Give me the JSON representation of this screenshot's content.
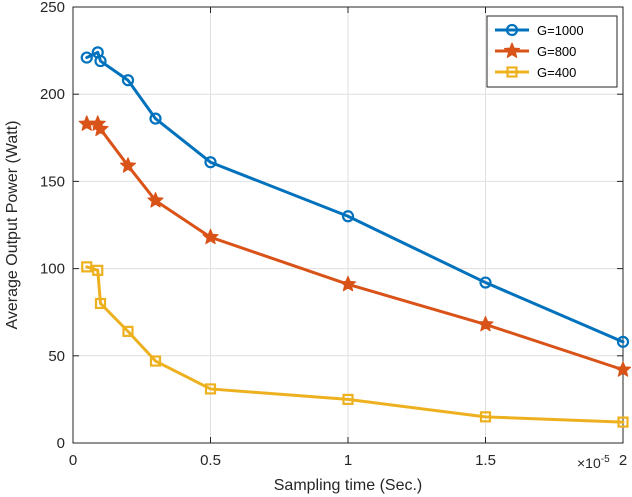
{
  "chart_data": {
    "type": "line",
    "xlabel": "Sampling time (Sec.)",
    "ylabel": "Average Output Power (Watt)",
    "x_exponent_base": "×10",
    "x_exponent_power": "-5",
    "xlim": [
      0,
      2
    ],
    "ylim": [
      0,
      250
    ],
    "xticks": [
      0,
      0.5,
      1,
      1.5,
      2
    ],
    "xtick_labels": [
      "0",
      "0.5",
      "1",
      "1.5",
      "2"
    ],
    "yticks": [
      0,
      50,
      100,
      150,
      200,
      250
    ],
    "ytick_labels": [
      "0",
      "50",
      "100",
      "150",
      "200",
      "250"
    ],
    "grid": true,
    "legend_position": "top-right",
    "series": [
      {
        "name": "G=1000",
        "color": "#0072BD",
        "marker": "circle",
        "x": [
          0.05,
          0.09,
          0.1,
          0.2,
          0.3,
          0.5,
          1.0,
          1.5,
          2.0
        ],
        "y": [
          221,
          224,
          219,
          208,
          186,
          161,
          130,
          92,
          58
        ]
      },
      {
        "name": "G=800",
        "color": "#D95319",
        "marker": "star",
        "x": [
          0.05,
          0.09,
          0.1,
          0.2,
          0.3,
          0.5,
          1.0,
          1.5,
          2.0
        ],
        "y": [
          183,
          183,
          180,
          159,
          139,
          118,
          91,
          68,
          42
        ]
      },
      {
        "name": "G=400",
        "color": "#EDB120",
        "marker": "square",
        "x": [
          0.05,
          0.09,
          0.1,
          0.2,
          0.3,
          0.5,
          1.0,
          1.5,
          2.0
        ],
        "y": [
          101,
          99,
          80,
          64,
          47,
          31,
          25,
          15,
          12
        ]
      }
    ]
  }
}
